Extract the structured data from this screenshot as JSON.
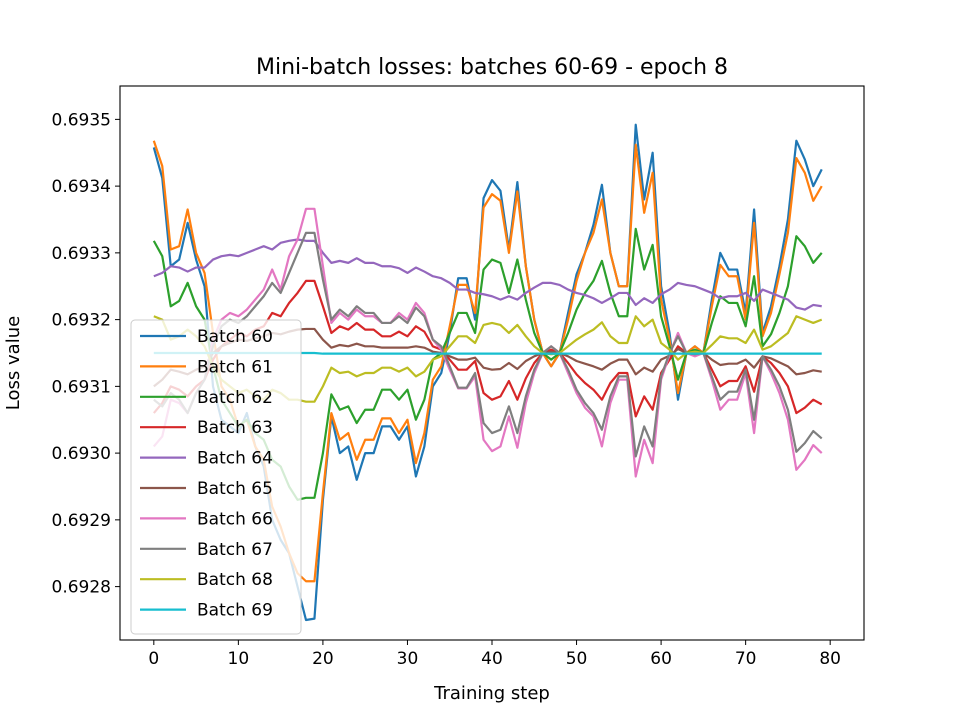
{
  "chart_data": {
    "type": "line",
    "title": "Mini-batch losses: batches 60-69 - epoch 8",
    "xlabel": "Training step",
    "ylabel": "Loss value",
    "xlim": [
      -4,
      84
    ],
    "ylim": [
      0.69272,
      0.69355
    ],
    "x_ticks": [
      0,
      10,
      20,
      30,
      40,
      50,
      60,
      70,
      80
    ],
    "y_ticks": [
      0.6928,
      0.6929,
      0.693,
      0.6931,
      0.6932,
      0.6933,
      0.6934,
      0.6935
    ],
    "x_tick_labels": [
      "0",
      "10",
      "20",
      "30",
      "40",
      "50",
      "60",
      "70",
      "80"
    ],
    "y_tick_labels": [
      "0.6928",
      "0.6929",
      "0.6930",
      "0.6931",
      "0.6932",
      "0.6933",
      "0.6934",
      "0.6935"
    ],
    "grid": false,
    "legend_position": "lower-left",
    "x": [
      0,
      1,
      2,
      3,
      4,
      5,
      6,
      7,
      8,
      9,
      10,
      11,
      12,
      13,
      14,
      15,
      16,
      17,
      18,
      19,
      20,
      21,
      22,
      23,
      24,
      25,
      26,
      27,
      28,
      29,
      30,
      31,
      32,
      33,
      34,
      35,
      36,
      37,
      38,
      39,
      40,
      41,
      42,
      43,
      44,
      45,
      46,
      47,
      48,
      49,
      50,
      51,
      52,
      53,
      54,
      55,
      56,
      57,
      58,
      59,
      60,
      61,
      62,
      63,
      64,
      65,
      66,
      67,
      68,
      69,
      70,
      71,
      72,
      73,
      74,
      75,
      76,
      77,
      78,
      79
    ],
    "series": [
      {
        "name": "Batch 60",
        "color": "#1f77b4",
        "values": [
          0.693458,
          0.693412,
          0.69328,
          0.69329,
          0.693345,
          0.69329,
          0.69325,
          0.6931,
          0.69305,
          0.69304,
          0.69303,
          0.69306,
          0.69301,
          0.69298,
          0.6929,
          0.69287,
          0.69285,
          0.6928,
          0.69275,
          0.692752,
          0.69293,
          0.693055,
          0.693,
          0.69301,
          0.69296,
          0.693,
          0.693,
          0.69304,
          0.69304,
          0.69302,
          0.69304,
          0.692965,
          0.69301,
          0.6931,
          0.69312,
          0.69318,
          0.693262,
          0.693262,
          0.6932,
          0.693382,
          0.693409,
          0.693393,
          0.693305,
          0.693406,
          0.69328,
          0.6932,
          0.69315,
          0.69313,
          0.69315,
          0.69321,
          0.693268,
          0.6933,
          0.693342,
          0.693402,
          0.6933,
          0.69325,
          0.69325,
          0.693492,
          0.69338,
          0.69345,
          0.69325,
          0.69318,
          0.69308,
          0.69315,
          0.69316,
          0.69315,
          0.69323,
          0.6933,
          0.693275,
          0.693275,
          0.69321,
          0.693365,
          0.69318,
          0.69322,
          0.69328,
          0.69335,
          0.693468,
          0.69344,
          0.6934,
          0.693425
        ]
      },
      {
        "name": "Batch 61",
        "color": "#ff7f0e",
        "values": [
          0.693468,
          0.69343,
          0.693305,
          0.69331,
          0.693365,
          0.6933,
          0.69327,
          0.69318,
          0.6931,
          0.69308,
          0.69304,
          0.69305,
          0.69301,
          0.69299,
          0.69292,
          0.69289,
          0.69285,
          0.69282,
          0.692808,
          0.692808,
          0.69294,
          0.69306,
          0.69302,
          0.69303,
          0.69299,
          0.69302,
          0.69302,
          0.693052,
          0.693052,
          0.69303,
          0.69305,
          0.692985,
          0.69303,
          0.69311,
          0.69313,
          0.69319,
          0.693252,
          0.693252,
          0.69321,
          0.693368,
          0.693388,
          0.693378,
          0.6933,
          0.693392,
          0.69328,
          0.6932,
          0.69315,
          0.69313,
          0.69315,
          0.6932,
          0.693258,
          0.6933,
          0.69333,
          0.69338,
          0.6933,
          0.69325,
          0.69325,
          0.693462,
          0.69336,
          0.69342,
          0.69323,
          0.69317,
          0.69309,
          0.69315,
          0.69316,
          0.69315,
          0.69322,
          0.693282,
          0.693265,
          0.693265,
          0.6932,
          0.693345,
          0.693175,
          0.69321,
          0.693268,
          0.69333,
          0.693442,
          0.69342,
          0.693378,
          0.6934
        ]
      },
      {
        "name": "Batch 62",
        "color": "#2ca02c",
        "values": [
          0.693318,
          0.693295,
          0.69322,
          0.693228,
          0.693255,
          0.69322,
          0.6932,
          0.69313,
          0.69308,
          0.69306,
          0.69304,
          0.69305,
          0.69303,
          0.69302,
          0.69299,
          0.69298,
          0.69295,
          0.69293,
          0.692933,
          0.692933,
          0.693,
          0.693088,
          0.693065,
          0.69307,
          0.693045,
          0.693065,
          0.693065,
          0.693095,
          0.693095,
          0.69308,
          0.693095,
          0.69305,
          0.69308,
          0.69314,
          0.69315,
          0.69318,
          0.69321,
          0.69321,
          0.69318,
          0.693275,
          0.69329,
          0.693285,
          0.69324,
          0.69329,
          0.69323,
          0.69318,
          0.69315,
          0.69314,
          0.69315,
          0.69318,
          0.693215,
          0.69324,
          0.693258,
          0.693288,
          0.69324,
          0.693205,
          0.693205,
          0.693336,
          0.693275,
          0.693312,
          0.693205,
          0.69316,
          0.69311,
          0.69315,
          0.693155,
          0.69315,
          0.693195,
          0.693235,
          0.693225,
          0.693225,
          0.69319,
          0.693265,
          0.69316,
          0.693178,
          0.69321,
          0.69325,
          0.693325,
          0.69331,
          0.693285,
          0.6933
        ]
      },
      {
        "name": "Batch 63",
        "color": "#d62728",
        "values": [
          0.69306,
          0.693075,
          0.6931,
          0.693095,
          0.693085,
          0.6931,
          0.69311,
          0.69314,
          0.69316,
          0.69317,
          0.69318,
          0.693175,
          0.693185,
          0.69319,
          0.69321,
          0.693205,
          0.693225,
          0.69324,
          0.693258,
          0.693258,
          0.69322,
          0.69318,
          0.69319,
          0.693185,
          0.693195,
          0.693185,
          0.693185,
          0.693175,
          0.693175,
          0.693182,
          0.693175,
          0.69319,
          0.693182,
          0.69316,
          0.693155,
          0.69314,
          0.693125,
          0.693125,
          0.693138,
          0.69309,
          0.69308,
          0.693085,
          0.693108,
          0.69308,
          0.693112,
          0.693135,
          0.69315,
          0.693155,
          0.69315,
          0.693135,
          0.693118,
          0.693105,
          0.693095,
          0.69308,
          0.693105,
          0.69312,
          0.69312,
          0.693055,
          0.693085,
          0.693065,
          0.69312,
          0.69314,
          0.69316,
          0.69315,
          0.693148,
          0.69315,
          0.693125,
          0.6931,
          0.693108,
          0.693108,
          0.69313,
          0.693092,
          0.693145,
          0.693135,
          0.69312,
          0.6931,
          0.69306,
          0.693068,
          0.69308,
          0.693073
        ]
      },
      {
        "name": "Batch 64",
        "color": "#9467bd",
        "values": [
          0.693265,
          0.69327,
          0.69328,
          0.693278,
          0.693272,
          0.693278,
          0.693278,
          0.69329,
          0.693295,
          0.693297,
          0.693295,
          0.6933,
          0.693305,
          0.69331,
          0.693305,
          0.693315,
          0.693318,
          0.69332,
          0.693318,
          0.693318,
          0.6933,
          0.693285,
          0.693288,
          0.693285,
          0.693292,
          0.693285,
          0.693285,
          0.69328,
          0.69328,
          0.693277,
          0.69327,
          0.693278,
          0.693272,
          0.693265,
          0.693262,
          0.693255,
          0.693245,
          0.693245,
          0.69324,
          0.693238,
          0.693235,
          0.69323,
          0.693235,
          0.69323,
          0.69324,
          0.693248,
          0.693255,
          0.693255,
          0.693252,
          0.693245,
          0.69324,
          0.693237,
          0.693232,
          0.693225,
          0.693232,
          0.69324,
          0.69324,
          0.693222,
          0.693232,
          0.693225,
          0.693238,
          0.693245,
          0.693255,
          0.693252,
          0.69325,
          0.693245,
          0.69324,
          0.693232,
          0.693235,
          0.693235,
          0.69324,
          0.693228,
          0.693245,
          0.69324,
          0.693235,
          0.69323,
          0.693218,
          0.693215,
          0.693222,
          0.69322
        ]
      },
      {
        "name": "Batch 65",
        "color": "#8c564b",
        "values": [
          0.6931,
          0.69311,
          0.693125,
          0.693122,
          0.693118,
          0.693125,
          0.69313,
          0.69315,
          0.69316,
          0.693165,
          0.69317,
          0.693168,
          0.693172,
          0.693175,
          0.69318,
          0.693178,
          0.693182,
          0.693185,
          0.693186,
          0.693186,
          0.69317,
          0.693158,
          0.693162,
          0.69316,
          0.693164,
          0.69316,
          0.69316,
          0.693158,
          0.693158,
          0.693158,
          0.693158,
          0.69316,
          0.693158,
          0.693152,
          0.69315,
          0.693145,
          0.69314,
          0.69314,
          0.693143,
          0.693128,
          0.693125,
          0.693126,
          0.693135,
          0.693126,
          0.693138,
          0.693145,
          0.69315,
          0.693152,
          0.69315,
          0.693145,
          0.693138,
          0.693134,
          0.69313,
          0.693125,
          0.693134,
          0.69314,
          0.69314,
          0.693118,
          0.693128,
          0.693122,
          0.69314,
          0.693146,
          0.693156,
          0.69315,
          0.69315,
          0.69315,
          0.69314,
          0.693132,
          0.693134,
          0.693134,
          0.69314,
          0.693128,
          0.693145,
          0.693142,
          0.693136,
          0.69313,
          0.693118,
          0.69312,
          0.693124,
          0.693122
        ]
      },
      {
        "name": "Batch 66",
        "color": "#e377c2",
        "values": [
          0.69301,
          0.693025,
          0.69308,
          0.693075,
          0.69306,
          0.69309,
          0.69311,
          0.69317,
          0.6932,
          0.69321,
          0.693205,
          0.693215,
          0.69323,
          0.693245,
          0.693275,
          0.693245,
          0.693295,
          0.69332,
          0.693366,
          0.693366,
          0.69328,
          0.693195,
          0.69321,
          0.6932,
          0.693215,
          0.693205,
          0.693205,
          0.693195,
          0.693195,
          0.69321,
          0.6932,
          0.693225,
          0.69321,
          0.69317,
          0.693155,
          0.693125,
          0.693097,
          0.693097,
          0.693115,
          0.69302,
          0.693003,
          0.69301,
          0.693055,
          0.693008,
          0.693075,
          0.69312,
          0.69315,
          0.69316,
          0.69315,
          0.69312,
          0.69309,
          0.693068,
          0.693055,
          0.69301,
          0.693075,
          0.69311,
          0.69311,
          0.692965,
          0.69302,
          0.692985,
          0.69311,
          0.693148,
          0.69318,
          0.69315,
          0.693145,
          0.69315,
          0.69311,
          0.693065,
          0.69308,
          0.69308,
          0.69312,
          0.69303,
          0.693145,
          0.69312,
          0.69309,
          0.69305,
          0.692975,
          0.69299,
          0.693012,
          0.693
        ]
      },
      {
        "name": "Batch 67",
        "color": "#7f7f7f",
        "values": [
          0.69308,
          0.69307,
          0.69309,
          0.69308,
          0.69306,
          0.69309,
          0.69311,
          0.69316,
          0.69319,
          0.6932,
          0.693195,
          0.693205,
          0.69322,
          0.693235,
          0.693255,
          0.69324,
          0.69327,
          0.6933,
          0.69333,
          0.69333,
          0.69326,
          0.6932,
          0.693215,
          0.693205,
          0.69322,
          0.69321,
          0.69321,
          0.693195,
          0.693195,
          0.693205,
          0.693195,
          0.693218,
          0.693205,
          0.69317,
          0.69316,
          0.69313,
          0.693098,
          0.693098,
          0.69312,
          0.693045,
          0.69303,
          0.693035,
          0.69307,
          0.69303,
          0.693085,
          0.693125,
          0.69315,
          0.69316,
          0.69315,
          0.693125,
          0.693095,
          0.693075,
          0.69306,
          0.693035,
          0.693085,
          0.693115,
          0.693115,
          0.692995,
          0.69304,
          0.69301,
          0.693115,
          0.69315,
          0.693175,
          0.69315,
          0.693148,
          0.69315,
          0.693115,
          0.69308,
          0.693092,
          0.693092,
          0.693125,
          0.69305,
          0.693145,
          0.693125,
          0.6931,
          0.693065,
          0.693002,
          0.693015,
          0.693033,
          0.693022
        ]
      },
      {
        "name": "Batch 68",
        "color": "#bcbd22",
        "values": [
          0.693205,
          0.6932,
          0.69317,
          0.693175,
          0.693185,
          0.693175,
          0.69316,
          0.69313,
          0.69311,
          0.6931,
          0.69309,
          0.693095,
          0.693085,
          0.69308,
          0.693095,
          0.69309,
          0.69308,
          0.69308,
          0.693077,
          0.693077,
          0.6931,
          0.693128,
          0.69312,
          0.693122,
          0.693115,
          0.69312,
          0.69312,
          0.693128,
          0.693128,
          0.693122,
          0.693128,
          0.693115,
          0.693122,
          0.69314,
          0.693145,
          0.69316,
          0.693175,
          0.693175,
          0.693165,
          0.693192,
          0.693195,
          0.693192,
          0.69318,
          0.693192,
          0.693175,
          0.69316,
          0.69315,
          0.693148,
          0.69315,
          0.69316,
          0.69317,
          0.693178,
          0.693185,
          0.693196,
          0.693175,
          0.693165,
          0.693165,
          0.693205,
          0.69319,
          0.6932,
          0.693165,
          0.693155,
          0.69314,
          0.69315,
          0.693152,
          0.69315,
          0.693162,
          0.693175,
          0.693172,
          0.693172,
          0.693165,
          0.693185,
          0.693155,
          0.69316,
          0.69317,
          0.69318,
          0.693205,
          0.6932,
          0.693195,
          0.6932
        ]
      },
      {
        "name": "Batch 69",
        "color": "#17becf",
        "values": [
          0.69315,
          0.69315,
          0.69315,
          0.69315,
          0.69315,
          0.69315,
          0.69315,
          0.69315,
          0.69315,
          0.69315,
          0.69315,
          0.69315,
          0.69315,
          0.69315,
          0.69315,
          0.69315,
          0.69315,
          0.69315,
          0.69315,
          0.69315,
          0.693149,
          0.693149,
          0.693149,
          0.693149,
          0.693149,
          0.693149,
          0.693149,
          0.693149,
          0.693149,
          0.693149,
          0.693149,
          0.693149,
          0.693149,
          0.693149,
          0.693149,
          0.693149,
          0.693149,
          0.693149,
          0.693149,
          0.693149,
          0.693149,
          0.693149,
          0.693149,
          0.693149,
          0.693149,
          0.693149,
          0.693149,
          0.693149,
          0.693149,
          0.693149,
          0.693149,
          0.693149,
          0.693149,
          0.693149,
          0.693149,
          0.693149,
          0.693149,
          0.693149,
          0.693149,
          0.693149,
          0.693149,
          0.693149,
          0.693149,
          0.693149,
          0.693149,
          0.693149,
          0.693149,
          0.693149,
          0.693149,
          0.693149,
          0.693149,
          0.693149,
          0.693149,
          0.693149,
          0.693149,
          0.693149,
          0.693149,
          0.693149,
          0.693149,
          0.693149
        ]
      }
    ]
  }
}
